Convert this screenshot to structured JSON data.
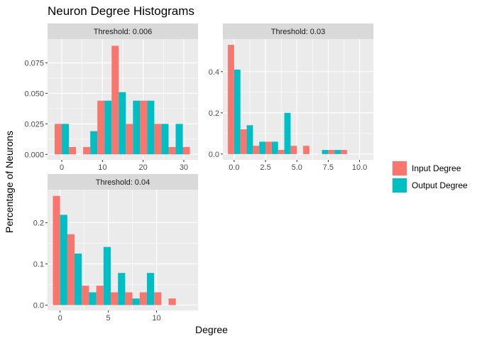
{
  "chart_data": {
    "type": "bar",
    "title": "Neuron Degree Histograms",
    "xlabel": "Degree",
    "ylabel": "Percentage of Neurons",
    "legend": {
      "placement": "right",
      "entries": [
        {
          "label": "Input Degree",
          "color": "#F8766D"
        },
        {
          "label": "Output Degree",
          "color": "#00BFC4"
        }
      ]
    },
    "panels": [
      {
        "strip": "Threshold: 0.006",
        "xlim": [
          -3.5,
          33.5
        ],
        "ylim": [
          -0.0045,
          0.0945
        ],
        "xticks": [
          0,
          10,
          20,
          30
        ],
        "xtick_labels": [
          "0",
          "10",
          "20",
          "30"
        ],
        "yticks": [
          0,
          0.025,
          0.05,
          0.075
        ],
        "ytick_labels": [
          "0.000",
          "0.025",
          "0.050",
          "0.075"
        ],
        "bin_width": 3.5,
        "bins": [
          0,
          3.5,
          7,
          10.5,
          14,
          17.5,
          21,
          24.5,
          28,
          31.5
        ],
        "series": [
          {
            "name": "Input Degree",
            "values": [
              0.025,
              0.006,
              0.006,
              0.044,
              0.089,
              0.025,
              0.044,
              0.025,
              0.006,
              0.006
            ]
          },
          {
            "name": "Output Degree",
            "values": [
              0.025,
              0,
              0.019,
              0.044,
              0.051,
              0.044,
              0.044,
              0.025,
              0.025,
              0
            ]
          }
        ]
      },
      {
        "strip": "Threshold: 0.03",
        "xlim": [
          -0.9,
          11.1
        ],
        "ylim": [
          -0.028,
          0.558
        ],
        "xticks": [
          0,
          2.5,
          5,
          7.5,
          10
        ],
        "xtick_labels": [
          "0.0",
          "2.5",
          "5.0",
          "7.5",
          "10.0"
        ],
        "yticks": [
          0,
          0.2,
          0.4
        ],
        "ytick_labels": [
          "0.0",
          "0.2",
          "0.4"
        ],
        "bin_width": 1,
        "bins": [
          0,
          1,
          2,
          3,
          4,
          5,
          6,
          7,
          8,
          9,
          10
        ],
        "series": [
          {
            "name": "Input Degree",
            "values": [
              0.53,
              0.12,
              0.04,
              0.06,
              0.02,
              0.04,
              0.04,
              0,
              0.02,
              0.02,
              0
            ]
          },
          {
            "name": "Output Degree",
            "values": [
              0.41,
              0.14,
              0.06,
              0.06,
              0.2,
              0,
              0,
              0.02,
              0.02,
              0,
              0
            ]
          }
        ]
      },
      {
        "strip": "Threshold: 0.04",
        "xlim": [
          -1.3,
          14.3
        ],
        "ylim": [
          -0.013,
          0.28
        ],
        "xticks": [
          0,
          5,
          10
        ],
        "xtick_labels": [
          "0",
          "5",
          "10"
        ],
        "yticks": [
          0,
          0.1,
          0.2
        ],
        "ytick_labels": [
          "0.0",
          "0.1",
          "0.2"
        ],
        "bin_width": 1.5,
        "bins": [
          0,
          1.5,
          3,
          4.5,
          6,
          7.5,
          9,
          10.5,
          12
        ],
        "series": [
          {
            "name": "Input Degree",
            "values": [
              0.265,
              0.172,
              0.047,
              0.047,
              0.031,
              0.031,
              0.031,
              0.031,
              0.016
            ]
          },
          {
            "name": "Output Degree",
            "values": [
              0.219,
              0.125,
              0.031,
              0.141,
              0.078,
              0.016,
              0.078,
              0,
              0
            ]
          }
        ]
      }
    ]
  }
}
